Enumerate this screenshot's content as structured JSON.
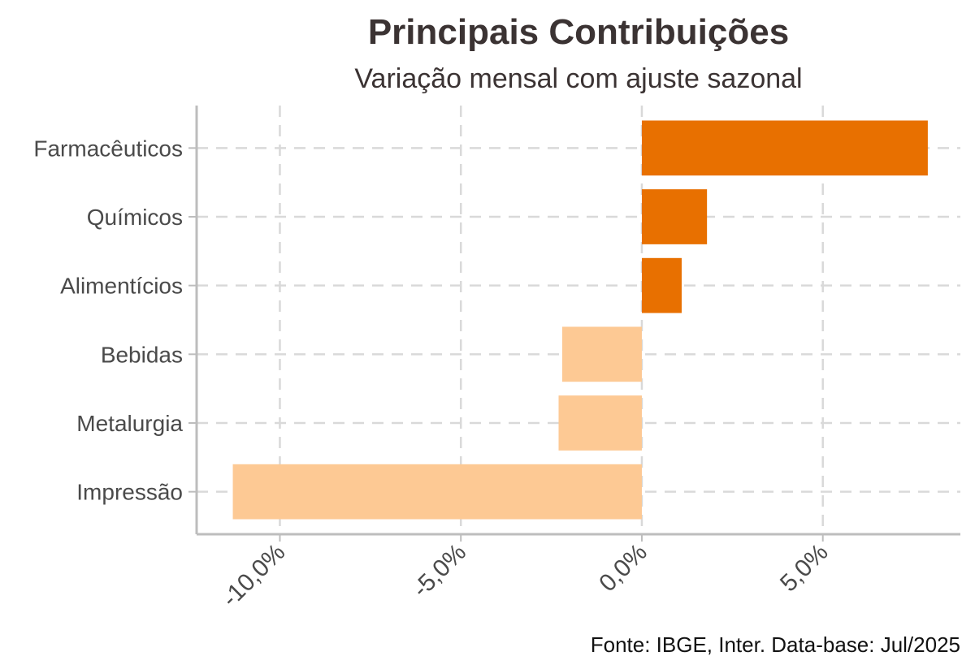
{
  "chart_data": {
    "type": "bar",
    "orientation": "horizontal",
    "title": "Principais Contribuições",
    "subtitle": "Variação mensal com ajuste sazonal",
    "caption": "Fonte: IBGE, Inter. Data-base: Jul/2025",
    "categories": [
      "Farmacêuticos",
      "Químicos",
      "Alimentícios",
      "Bebidas",
      "Metalurgia",
      "Impressão"
    ],
    "values": [
      7.9,
      1.8,
      1.1,
      -2.2,
      -2.3,
      -11.3
    ],
    "xlim": [
      -12.3,
      8.8
    ],
    "xticks": [
      -10,
      -5,
      0,
      5
    ],
    "xtick_labels": [
      "-10,0%",
      "-5,0%",
      "0,0%",
      "5,0%"
    ],
    "grid": true,
    "colors": {
      "positive": "#e87000",
      "negative": "#fdc994"
    }
  }
}
